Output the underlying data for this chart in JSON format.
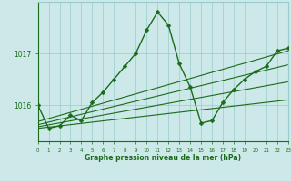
{
  "x": [
    0,
    1,
    2,
    3,
    4,
    5,
    6,
    7,
    8,
    9,
    10,
    11,
    12,
    13,
    14,
    15,
    16,
    17,
    18,
    19,
    20,
    21,
    22,
    23
  ],
  "y": [
    1016.0,
    1015.55,
    1015.6,
    1015.8,
    1015.7,
    1016.05,
    1016.25,
    1016.5,
    1016.75,
    1017.0,
    1017.45,
    1017.8,
    1017.55,
    1016.8,
    1016.35,
    1015.65,
    1015.7,
    1016.05,
    1016.3,
    1016.5,
    1016.65,
    1016.75,
    1017.05,
    1017.1
  ],
  "line_color": "#1a6b1a",
  "bg_color": "#cce8e8",
  "grid_color": "#99cccc",
  "xlim": [
    0,
    23
  ],
  "ylim": [
    1015.3,
    1018.0
  ],
  "xlabel_label": "Graphe pression niveau de la mer (hPa)",
  "trend_lines": [
    [
      1015.55,
      1015.55,
      1016.2,
      1016.2
    ],
    [
      1015.58,
      1015.58,
      1016.55,
      1016.55
    ],
    [
      1015.62,
      1015.62,
      1016.88,
      1016.88
    ],
    [
      1015.68,
      1015.68,
      1017.12,
      1017.12
    ]
  ],
  "line_width": 1.0,
  "marker_size": 2.5,
  "ytick_vals": [
    1016.0,
    1017.0
  ],
  "ytick_labels": [
    "1016",
    "1017"
  ]
}
